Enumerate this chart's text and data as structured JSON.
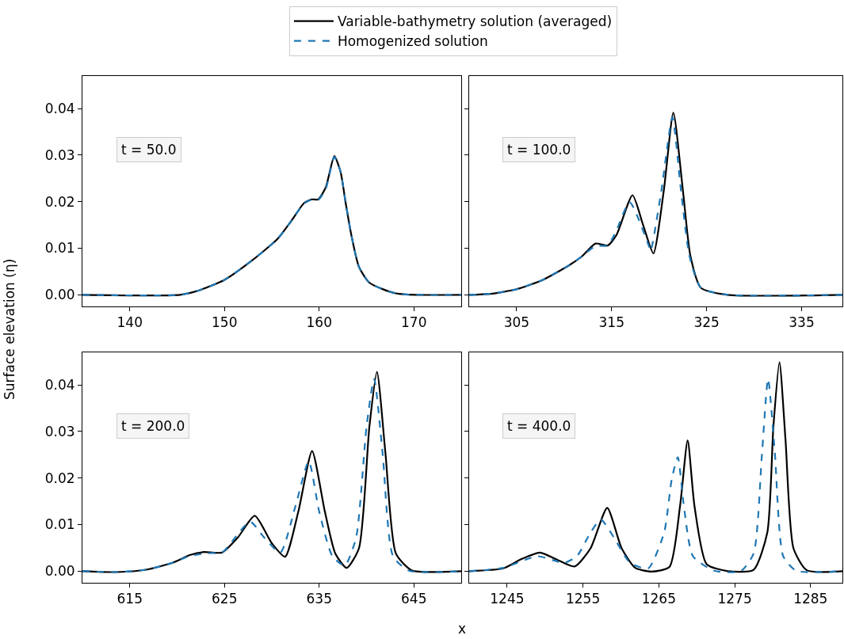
{
  "chart_data": [
    {
      "type": "line",
      "xlabel": "x",
      "ylabel": "Surface elevation (η)",
      "legend": "top",
      "annotations": [
        "t = 50.0"
      ],
      "xlim": [
        135,
        175
      ],
      "xticks": [
        140,
        150,
        160,
        170
      ],
      "ylim": [
        -0.0025,
        0.047
      ],
      "yticks": [
        {
          "value": 0,
          "label": "0.00"
        },
        {
          "value": 0.01,
          "label": "0.01"
        },
        {
          "value": 0.02,
          "label": "0.02"
        },
        {
          "value": 0.03,
          "label": "0.03"
        },
        {
          "value": 0.04,
          "label": "0.04"
        }
      ],
      "series": [
        {
          "name": "Variable-bathymetry solution (averaged)",
          "color": "#000000",
          "line_style": "solid",
          "x": [
            135,
            145.3,
            147.25,
            150.0,
            152.8,
            155.6,
            157.0,
            158.4,
            159.2,
            159.9,
            160.7,
            161.6,
            162.25,
            162.8,
            163.4,
            164.2,
            165.3,
            168.1,
            175
          ],
          "values": [
            0,
            0,
            0.0009,
            0.0032,
            0.0072,
            0.012,
            0.0157,
            0.0197,
            0.0205,
            0.0205,
            0.0231,
            0.0298,
            0.0265,
            0.0197,
            0.0128,
            0.006,
            0.0026,
            0.0003,
            0
          ]
        },
        {
          "name": "Homogenized solution",
          "color": "#1f77b4",
          "line_style": "dashed",
          "x": [
            135,
            145.3,
            147.25,
            150.0,
            152.8,
            155.6,
            157.0,
            158.4,
            159.2,
            159.9,
            160.7,
            161.6,
            162.25,
            162.8,
            163.4,
            164.2,
            165.3,
            168.1,
            175
          ],
          "values": [
            0,
            0,
            0.0009,
            0.0032,
            0.0072,
            0.012,
            0.0157,
            0.0196,
            0.0204,
            0.0204,
            0.0228,
            0.0296,
            0.0265,
            0.0197,
            0.0128,
            0.006,
            0.0026,
            0.0003,
            0
          ]
        }
      ]
    },
    {
      "type": "line",
      "tick_labels": "x",
      "annotations": [
        "t = 100.0"
      ],
      "xlim": [
        300,
        339.3
      ],
      "xticks": [
        305,
        315,
        325,
        335
      ],
      "ylim": [
        -0.0025,
        0.047
      ],
      "yticks": [
        {
          "value": 0,
          "label": null
        },
        {
          "value": 0.01,
          "label": null
        },
        {
          "value": 0.02,
          "label": null
        },
        {
          "value": 0.03,
          "label": null
        },
        {
          "value": 0.04,
          "label": null
        }
      ],
      "series": [
        {
          "color": "#000000",
          "line_style": "solid",
          "x": [
            300,
            302.2,
            305,
            307.75,
            310.5,
            311.9,
            313.3,
            314.6,
            315.5,
            317.2,
            318.3,
            319.4,
            320.5,
            321.5,
            322.5,
            323.3,
            324.4,
            327.2,
            339.3
          ],
          "values": [
            0,
            0.0002,
            0.0012,
            0.0032,
            0.0063,
            0.0083,
            0.011,
            0.0106,
            0.0128,
            0.0214,
            0.0151,
            0.0089,
            0.0225,
            0.0391,
            0.0225,
            0.0083,
            0.0015,
            0,
            0
          ]
        },
        {
          "color": "#1f77b4",
          "line_style": "dashed",
          "x": [
            300,
            302.2,
            305,
            307.75,
            310.5,
            311.9,
            313.3,
            314.6,
            315.5,
            316.9,
            318.9,
            319.1,
            320.25,
            321.4,
            322.3,
            323.2,
            324.4,
            327.2,
            339.3
          ],
          "values": [
            0,
            0.0002,
            0.0012,
            0.0032,
            0.0063,
            0.0083,
            0.0105,
            0.0106,
            0.0138,
            0.0199,
            0.0106,
            0.0094,
            0.0225,
            0.0381,
            0.0225,
            0.0083,
            0.0015,
            0,
            0
          ]
        }
      ]
    },
    {
      "type": "line",
      "annotations": [
        "t = 200.0"
      ],
      "xlim": [
        610,
        650
      ],
      "xticks": [
        615,
        625,
        635,
        645
      ],
      "ylim": [
        -0.0025,
        0.047
      ],
      "yticks": [
        {
          "value": 0,
          "label": "0.00"
        },
        {
          "value": 0.01,
          "label": "0.01"
        },
        {
          "value": 0.02,
          "label": "0.02"
        },
        {
          "value": 0.03,
          "label": "0.03"
        },
        {
          "value": 0.04,
          "label": "0.04"
        }
      ],
      "series": [
        {
          "color": "#000000",
          "line_style": "solid",
          "x": [
            610,
            613.6,
            616.7,
            619.5,
            621.4,
            622.8,
            624.75,
            626.4,
            628.2,
            630.0,
            631.4,
            632.8,
            634.25,
            635.6,
            636.7,
            637.9,
            639.2,
            640.3,
            641.1,
            642.0,
            643.1,
            644.75,
            650
          ],
          "values": [
            0,
            -0.0002,
            0.0003,
            0.0018,
            0.0035,
            0.0041,
            0.004,
            0.0072,
            0.0119,
            0.006,
            0.0031,
            0.0128,
            0.0258,
            0.0128,
            0.0038,
            0.0007,
            0.0049,
            0.031,
            0.0428,
            0.0253,
            0.0038,
            0.0002,
            0
          ]
        },
        {
          "color": "#1f77b4",
          "line_style": "dashed",
          "x": [
            610,
            613.6,
            616.7,
            619.5,
            621.4,
            623.6,
            624.75,
            627.7,
            629.2,
            630.9,
            632.5,
            633.9,
            635.0,
            636.4,
            637.7,
            638.9,
            640.0,
            640.8,
            641.7,
            642.8,
            644.5,
            650
          ],
          "values": [
            0,
            -0.0002,
            0.0003,
            0.0018,
            0.0033,
            0.0039,
            0.004,
            0.0106,
            0.0072,
            0.004,
            0.014,
            0.0236,
            0.0128,
            0.0032,
            0.0012,
            0.0072,
            0.031,
            0.0413,
            0.0253,
            0.0032,
            0.0001,
            0
          ]
        }
      ]
    },
    {
      "type": "line",
      "tick_labels": "x",
      "annotations": [
        "t = 400.0"
      ],
      "xlim": [
        1240,
        1289.2
      ],
      "xticks": [
        1245,
        1255,
        1265,
        1275,
        1285
      ],
      "ylim": [
        -0.0025,
        0.047
      ],
      "yticks": [
        {
          "value": 0,
          "label": null
        },
        {
          "value": 0.01,
          "label": null
        },
        {
          "value": 0.02,
          "label": null
        },
        {
          "value": 0.03,
          "label": null
        },
        {
          "value": 0.04,
          "label": null
        }
      ],
      "series": [
        {
          "color": "#000000",
          "line_style": "solid",
          "x": [
            1240,
            1244.5,
            1246.9,
            1249.35,
            1251.4,
            1253.9,
            1256.0,
            1258.2,
            1260.1,
            1261.9,
            1264.0,
            1266.4,
            1267.8,
            1268.8,
            1269.7,
            1271.3,
            1274.1,
            1277.5,
            1279.3,
            1280.1,
            1280.9,
            1281.7,
            1282.75,
            1284.5,
            1289.2
          ],
          "values": [
            0,
            0.0006,
            0.0026,
            0.004,
            0.0026,
            0.001,
            0.0049,
            0.0136,
            0.0049,
            0.0007,
            -0.0001,
            0.0009,
            0.014,
            0.0281,
            0.014,
            0.0015,
            0,
            0.0003,
            0.0083,
            0.031,
            0.0449,
            0.0282,
            0.0049,
            0.0002,
            0
          ]
        },
        {
          "color": "#1f77b4",
          "line_style": "dashed",
          "x": [
            1240,
            1244.5,
            1249.0,
            1252.5,
            1254.2,
            1256.0,
            1257.35,
            1259.1,
            1261.2,
            1263.6,
            1265.7,
            1266.7,
            1267.5,
            1268.3,
            1269.5,
            1272.3,
            1275.8,
            1277.5,
            1278.6,
            1279.4,
            1280.3,
            1281.4,
            1283.1,
            1289.2
          ],
          "values": [
            0,
            0.0007,
            0.0032,
            0.0018,
            0.0032,
            0.0083,
            0.0111,
            0.0072,
            0.0018,
            0.0006,
            0.0083,
            0.0197,
            0.0245,
            0.014,
            0.0032,
            0.0001,
            0,
            0.0038,
            0.0253,
            0.0413,
            0.0253,
            0.0032,
            0.0001,
            0
          ]
        }
      ]
    }
  ]
}
